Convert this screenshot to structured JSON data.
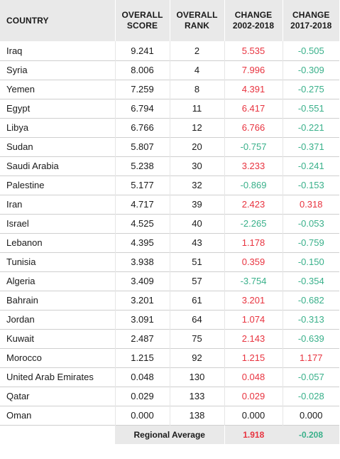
{
  "headers": {
    "country": "COUNTRY",
    "score_line1": "OVERALL",
    "score_line2": "SCORE",
    "rank_line1": "OVERALL",
    "rank_line2": "RANK",
    "change1_line1": "CHANGE",
    "change1_line2": "2002-2018",
    "change2_line1": "CHANGE",
    "change2_line2": "2017-2018"
  },
  "colors": {
    "positive": "#e8333f",
    "negative": "#39b08a",
    "neutral": "#1a1a1a",
    "header_bg": "#e9e9e9"
  },
  "rows": [
    {
      "country": "Iraq",
      "score": "9.241",
      "rank": "2",
      "change_2002_2018": "5.535",
      "change_2017_2018": "-0.505"
    },
    {
      "country": "Syria",
      "score": "8.006",
      "rank": "4",
      "change_2002_2018": "7.996",
      "change_2017_2018": "-0.309"
    },
    {
      "country": "Yemen",
      "score": "7.259",
      "rank": "8",
      "change_2002_2018": "4.391",
      "change_2017_2018": "-0.275"
    },
    {
      "country": "Egypt",
      "score": "6.794",
      "rank": "11",
      "change_2002_2018": "6.417",
      "change_2017_2018": "-0.551"
    },
    {
      "country": "Libya",
      "score": "6.766",
      "rank": "12",
      "change_2002_2018": "6.766",
      "change_2017_2018": "-0.221"
    },
    {
      "country": "Sudan",
      "score": "5.807",
      "rank": "20",
      "change_2002_2018": "-0.757",
      "change_2017_2018": "-0.371"
    },
    {
      "country": "Saudi Arabia",
      "score": "5.238",
      "rank": "30",
      "change_2002_2018": "3.233",
      "change_2017_2018": "-0.241"
    },
    {
      "country": "Palestine",
      "score": "5.177",
      "rank": "32",
      "change_2002_2018": "-0.869",
      "change_2017_2018": "-0.153"
    },
    {
      "country": "Iran",
      "score": "4.717",
      "rank": "39",
      "change_2002_2018": "2.423",
      "change_2017_2018": "0.318"
    },
    {
      "country": "Israel",
      "score": "4.525",
      "rank": "40",
      "change_2002_2018": "-2.265",
      "change_2017_2018": "-0.053"
    },
    {
      "country": "Lebanon",
      "score": "4.395",
      "rank": "43",
      "change_2002_2018": "1.178",
      "change_2017_2018": "-0.759"
    },
    {
      "country": "Tunisia",
      "score": "3.938",
      "rank": "51",
      "change_2002_2018": "0.359",
      "change_2017_2018": "-0.150"
    },
    {
      "country": "Algeria",
      "score": "3.409",
      "rank": "57",
      "change_2002_2018": "-3.754",
      "change_2017_2018": "-0.354"
    },
    {
      "country": "Bahrain",
      "score": "3.201",
      "rank": "61",
      "change_2002_2018": "3.201",
      "change_2017_2018": "-0.682"
    },
    {
      "country": "Jordan",
      "score": "3.091",
      "rank": "64",
      "change_2002_2018": "1.074",
      "change_2017_2018": "-0.313"
    },
    {
      "country": "Kuwait",
      "score": "2.487",
      "rank": "75",
      "change_2002_2018": "2.143",
      "change_2017_2018": "-0.639"
    },
    {
      "country": "Morocco",
      "score": "1.215",
      "rank": "92",
      "change_2002_2018": "1.215",
      "change_2017_2018": "1.177"
    },
    {
      "country": "United Arab Emirates",
      "score": "0.048",
      "rank": "130",
      "change_2002_2018": "0.048",
      "change_2017_2018": "-0.057"
    },
    {
      "country": "Qatar",
      "score": "0.029",
      "rank": "133",
      "change_2002_2018": "0.029",
      "change_2017_2018": "-0.028"
    },
    {
      "country": "Oman",
      "score": "0.000",
      "rank": "138",
      "change_2002_2018": "0.000",
      "change_2017_2018": "0.000"
    }
  ],
  "average": {
    "label": "Regional Average",
    "change_2002_2018": "1.918",
    "change_2017_2018": "-0.208"
  }
}
